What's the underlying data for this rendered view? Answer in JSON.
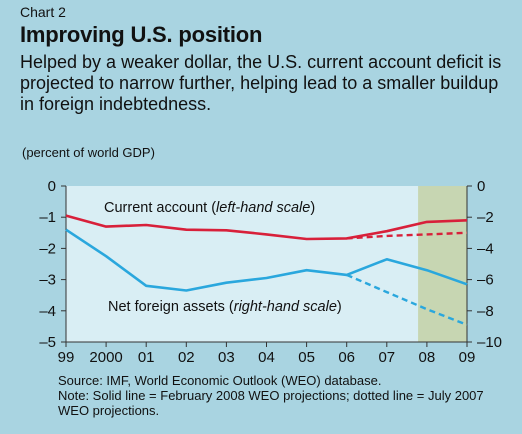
{
  "header": {
    "chart_label": "Chart 2",
    "title": "Improving U.S. position",
    "subtitle": "Helped by a weaker dollar, the U.S. current account deficit is projected to narrow further, helping lead to a smaller buildup in foreign indebtedness.",
    "unit": "(percent of world GDP)"
  },
  "footer": {
    "source": "Source: IMF, World Economic Outlook (WEO) database.",
    "note": "Note: Solid line = February 2008 WEO projections; dotted line = July 2007 WEO projections."
  },
  "colors": {
    "page_background": "#a9d4e1",
    "plot_background": "#d9eef4",
    "projection_shade": "#c7d6b2",
    "current_account": "#d8203a",
    "net_foreign_assets": "#2aa7dd"
  },
  "chart_data": {
    "type": "line",
    "categories": [
      "99",
      "2000",
      "01",
      "02",
      "03",
      "04",
      "05",
      "06",
      "07",
      "08",
      "09"
    ],
    "projection_shade_from": "07",
    "left_axis": {
      "ylim": [
        -5,
        0
      ],
      "ticks": [
        "0",
        "–1",
        "–2",
        "–3",
        "–4",
        "–5"
      ],
      "tick_values": [
        0,
        -1,
        -2,
        -3,
        -4,
        -5
      ]
    },
    "right_axis": {
      "ylim": [
        -10,
        0
      ],
      "ticks": [
        "0",
        "–2",
        "–4",
        "–6",
        "–8",
        "–10"
      ],
      "tick_values": [
        0,
        -2,
        -4,
        -6,
        -8,
        -10
      ]
    },
    "series": [
      {
        "name": "Current account",
        "label_main": "Current account (",
        "label_italic": "left-hand scale",
        "label_end": ")",
        "axis": "left",
        "style": "solid",
        "values": [
          -0.95,
          -1.3,
          -1.25,
          -1.4,
          -1.42,
          -1.55,
          -1.7,
          -1.68,
          -1.45,
          -1.15,
          -1.1
        ]
      },
      {
        "name": "Current account (July 2007 WEO projections)",
        "axis": "left",
        "style": "dotted",
        "values": [
          null,
          null,
          null,
          null,
          null,
          null,
          null,
          -1.68,
          -1.6,
          -1.55,
          -1.5
        ]
      },
      {
        "name": "Net foreign assets",
        "label_main": "Net foreign assets (",
        "label_italic": "right-hand scale",
        "label_end": ")",
        "axis": "right",
        "style": "solid",
        "values": [
          -2.8,
          -4.5,
          -6.4,
          -6.7,
          -6.2,
          -5.9,
          -5.4,
          -5.7,
          -4.7,
          -5.4,
          -6.3
        ]
      },
      {
        "name": "Net foreign assets (July 2007 WEO projections)",
        "axis": "right",
        "style": "dotted",
        "values": [
          null,
          null,
          null,
          null,
          null,
          null,
          null,
          -5.7,
          -6.8,
          -7.9,
          -8.9
        ]
      }
    ]
  }
}
